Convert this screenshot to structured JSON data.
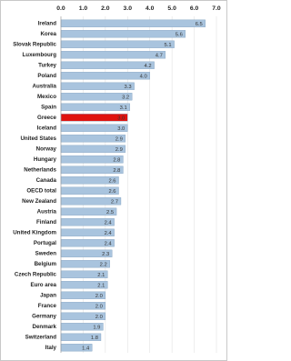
{
  "chart_data": {
    "type": "hbar",
    "categories": [
      "Ireland",
      "Korea",
      "Slovak Republic",
      "Luxembourg",
      "Turkey",
      "Poland",
      "Australia",
      "Mexico",
      "Spain",
      "Greece",
      "Iceland",
      "United States",
      "Norway",
      "Hungary",
      "Netherlands",
      "Canada",
      "OECD total",
      "New Zealand",
      "Austria",
      "Finland",
      "United Kingdom",
      "Portugal",
      "Sweden",
      "Belgium",
      "Czech Republic",
      "Euro area",
      "Japan",
      "France",
      "Germany",
      "Denmark",
      "Switzerland",
      "Italy"
    ],
    "values": [
      6.5,
      5.6,
      5.1,
      4.7,
      4.2,
      4.0,
      3.3,
      3.2,
      3.1,
      3.0,
      3.0,
      2.9,
      2.9,
      2.8,
      2.8,
      2.6,
      2.6,
      2.7,
      2.5,
      2.4,
      2.4,
      2.4,
      2.3,
      2.2,
      2.1,
      2.1,
      2.0,
      2.0,
      2.0,
      1.9,
      1.8,
      1.4
    ],
    "value_labels": [
      "6.5",
      "5.6",
      "5.1",
      "4.7",
      "4.2",
      "4.0",
      "3.3",
      "3.2",
      "3.1",
      "3.0",
      "3.0",
      "2.9",
      "2.9",
      "2.8",
      "2.8",
      "2.6",
      "2.6",
      "2.7",
      "2.5",
      "2.4",
      "2.4",
      "2.4",
      "2.3",
      "2.2",
      "2.1",
      "2.1",
      "2.0",
      "2.0",
      "2.0",
      "1.9",
      "1.8",
      "1.4"
    ],
    "color": "#a9c4de",
    "highlight": {
      "category": "Greece",
      "color": "#e0120e"
    },
    "xlim": [
      0,
      7
    ],
    "xticks": [
      {
        "value": 0,
        "label": "0.0"
      },
      {
        "value": 1,
        "label": "1.0"
      },
      {
        "value": 2,
        "label": "2.0"
      },
      {
        "value": 3,
        "label": "3.0"
      },
      {
        "value": 4,
        "label": "4.0"
      },
      {
        "value": 5,
        "label": "5.0"
      },
      {
        "value": 6,
        "label": "6.0"
      },
      {
        "value": 7,
        "label": "7.0"
      }
    ],
    "grid": true
  }
}
